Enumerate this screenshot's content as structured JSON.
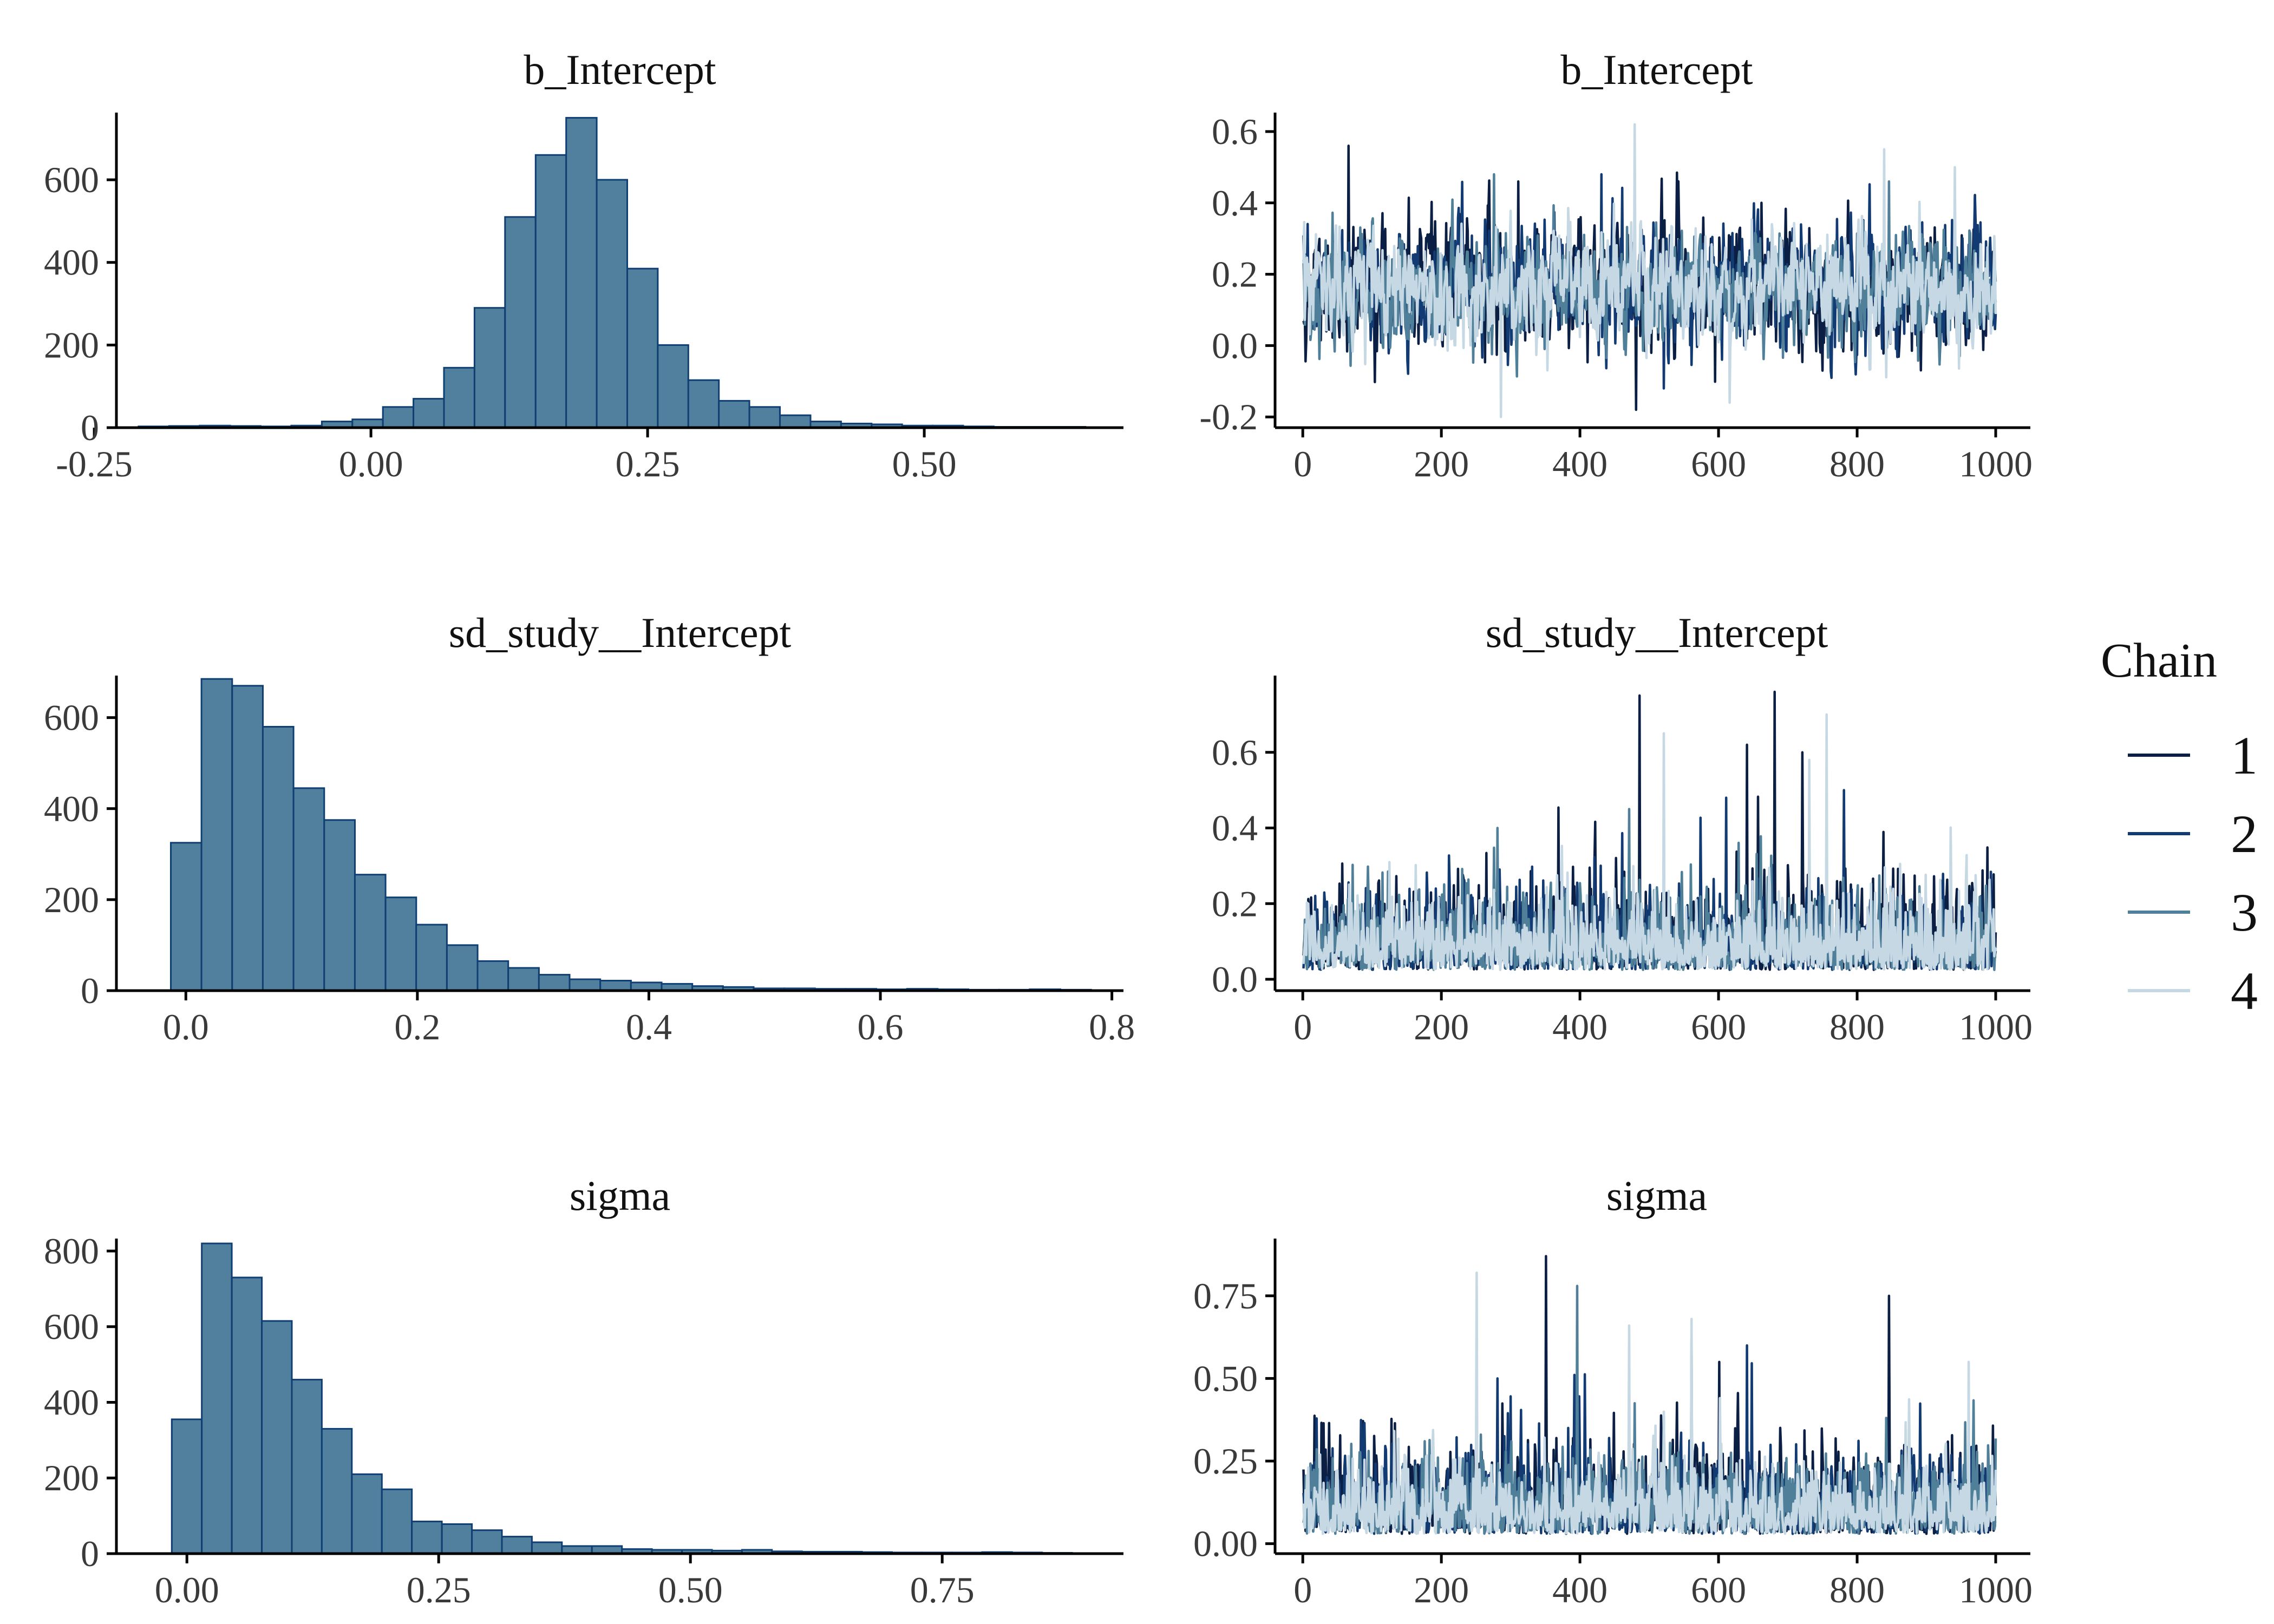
{
  "figure": {
    "legend_title": "Chain"
  },
  "legend": {
    "items": [
      {
        "label": "1",
        "color": "#0b1f45"
      },
      {
        "label": "2",
        "color": "#123a73"
      },
      {
        "label": "3",
        "color": "#4f7f99"
      },
      {
        "label": "4",
        "color": "#c5d8e4"
      }
    ]
  },
  "colors": {
    "hist_fill": "#51809f",
    "hist_edge": "#0f3f72",
    "axis": "#000000"
  },
  "chart_data": [
    {
      "type": "bar",
      "subtype": "histogram",
      "title": "b_Intercept",
      "xlabel": "",
      "ylabel": "",
      "xlim": [
        -0.23,
        0.68
      ],
      "ylim": [
        0,
        760
      ],
      "xticks": [
        -0.25,
        0.0,
        0.25,
        0.5
      ],
      "xtick_labels": [
        "-0.25",
        "0.00",
        "0.25",
        "0.50"
      ],
      "yticks": [
        0,
        200,
        400,
        600
      ],
      "ytick_labels": [
        "0",
        "200",
        "400",
        "600"
      ],
      "bin_start": -0.21,
      "bin_width": 0.0276,
      "counts": [
        3,
        4,
        5,
        4,
        3,
        5,
        15,
        20,
        50,
        70,
        145,
        290,
        510,
        660,
        750,
        600,
        385,
        200,
        115,
        65,
        50,
        30,
        15,
        10,
        8,
        5,
        5,
        3,
        2,
        2,
        2
      ]
    },
    {
      "type": "line",
      "subtype": "trace",
      "title": "b_Intercept",
      "xlabel": "",
      "ylabel": "",
      "xlim": [
        -40,
        1050
      ],
      "ylim": [
        -0.23,
        0.65
      ],
      "xticks": [
        0,
        200,
        400,
        600,
        800,
        1000
      ],
      "xtick_labels": [
        "0",
        "200",
        "400",
        "600",
        "800",
        "1000"
      ],
      "yticks": [
        -0.2,
        0.0,
        0.2,
        0.4,
        0.6
      ],
      "ytick_labels": [
        "-0.2",
        "0.0",
        "0.2",
        "0.4",
        "0.6"
      ],
      "iterations": 1000,
      "series": [
        {
          "name": "Chain 1",
          "color": "#0b1f45",
          "center": 0.16,
          "scale": 0.08,
          "seed": 11,
          "min": -0.18,
          "max": 0.56,
          "peaks": [
            [
              65,
              0.56
            ],
            [
              480,
              -0.18
            ],
            [
              310,
              0.46
            ]
          ]
        },
        {
          "name": "Chain 2",
          "color": "#123a73",
          "center": 0.16,
          "scale": 0.075,
          "seed": 23,
          "min": -0.15,
          "max": 0.5,
          "peaks": [
            [
              430,
              0.48
            ],
            [
              520,
              -0.12
            ]
          ]
        },
        {
          "name": "Chain 3",
          "color": "#4f7f99",
          "center": 0.16,
          "scale": 0.07,
          "seed": 37,
          "min": -0.12,
          "max": 0.48,
          "peaks": [
            [
              275,
              0.48
            ],
            [
              845,
              0.46
            ]
          ]
        },
        {
          "name": "Chain 4",
          "color": "#c5d8e4",
          "center": 0.16,
          "scale": 0.07,
          "seed": 53,
          "min": -0.2,
          "max": 0.62,
          "peaks": [
            [
              478,
              0.62
            ],
            [
              285,
              -0.2
            ],
            [
              838,
              0.55
            ],
            [
              940,
              0.5
            ],
            [
              615,
              -0.16
            ]
          ]
        }
      ]
    },
    {
      "type": "bar",
      "subtype": "histogram",
      "title": "sd_study__Intercept",
      "xlabel": "",
      "ylabel": "",
      "xlim": [
        -0.06,
        0.81
      ],
      "ylim": [
        0,
        690
      ],
      "xticks": [
        0.0,
        0.2,
        0.4,
        0.6,
        0.8
      ],
      "xtick_labels": [
        "0.0",
        "0.2",
        "0.4",
        "0.6",
        "0.8"
      ],
      "yticks": [
        0,
        200,
        400,
        600
      ],
      "ytick_labels": [
        "0",
        "200",
        "400",
        "600"
      ],
      "bin_start": -0.013,
      "bin_width": 0.0265,
      "counts": [
        325,
        685,
        670,
        580,
        445,
        375,
        255,
        205,
        145,
        100,
        65,
        50,
        35,
        25,
        22,
        18,
        15,
        10,
        8,
        5,
        5,
        4,
        4,
        3,
        4,
        3,
        2,
        2,
        3,
        2
      ]
    },
    {
      "type": "line",
      "subtype": "trace",
      "title": "sd_study__Intercept",
      "xlabel": "",
      "ylabel": "",
      "xlim": [
        -40,
        1050
      ],
      "ylim": [
        -0.03,
        0.8
      ],
      "xticks": [
        0,
        200,
        400,
        600,
        800,
        1000
      ],
      "xtick_labels": [
        "0",
        "200",
        "400",
        "600",
        "800",
        "1000"
      ],
      "yticks": [
        0.0,
        0.2,
        0.4,
        0.6
      ],
      "ytick_labels": [
        "0.0",
        "0.2",
        "0.4",
        "0.6"
      ],
      "iterations": 1000,
      "series": [
        {
          "name": "Chain 1",
          "color": "#0b1f45",
          "center": 0.1,
          "scale": 0.08,
          "seed": 71,
          "min": 0.0,
          "max": 0.76,
          "peaks": [
            [
              485,
              0.75
            ],
            [
              680,
              0.76
            ],
            [
              640,
              0.62
            ],
            [
              720,
              0.6
            ]
          ]
        },
        {
          "name": "Chain 2",
          "color": "#123a73",
          "center": 0.1,
          "scale": 0.075,
          "seed": 83,
          "min": 0.0,
          "max": 0.55,
          "peaks": [
            [
              780,
              0.5
            ],
            [
              610,
              0.48
            ]
          ]
        },
        {
          "name": "Chain 3",
          "color": "#4f7f99",
          "center": 0.1,
          "scale": 0.07,
          "seed": 97,
          "min": 0.0,
          "max": 0.5,
          "peaks": [
            [
              470,
              0.45
            ],
            [
              280,
              0.4
            ]
          ]
        },
        {
          "name": "Chain 4",
          "color": "#c5d8e4",
          "center": 0.1,
          "scale": 0.07,
          "seed": 101,
          "min": 0.0,
          "max": 0.72,
          "peaks": [
            [
              520,
              0.65
            ],
            [
              755,
              0.7
            ],
            [
              730,
              0.58
            ]
          ]
        }
      ]
    },
    {
      "type": "bar",
      "subtype": "histogram",
      "title": "sigma",
      "xlabel": "",
      "ylabel": "",
      "xlim": [
        -0.07,
        0.93
      ],
      "ylim": [
        0,
        830
      ],
      "xticks": [
        0.0,
        0.25,
        0.5,
        0.75
      ],
      "xtick_labels": [
        "0.00",
        "0.25",
        "0.50",
        "0.75"
      ],
      "yticks": [
        0,
        200,
        400,
        600,
        800
      ],
      "ytick_labels": [
        "0",
        "200",
        "400",
        "600",
        "800"
      ],
      "bin_start": -0.015,
      "bin_width": 0.0298,
      "counts": [
        355,
        820,
        730,
        615,
        460,
        330,
        210,
        170,
        85,
        78,
        62,
        45,
        30,
        20,
        20,
        12,
        10,
        10,
        8,
        10,
        6,
        5,
        5,
        4,
        3,
        3,
        3,
        4,
        3,
        2
      ]
    },
    {
      "type": "line",
      "subtype": "trace",
      "title": "sigma",
      "xlabel": "",
      "ylabel": "",
      "xlim": [
        -40,
        1050
      ],
      "ylim": [
        -0.03,
        0.92
      ],
      "xticks": [
        0,
        200,
        400,
        600,
        800,
        1000
      ],
      "xtick_labels": [
        "0",
        "200",
        "400",
        "600",
        "800",
        "1000"
      ],
      "yticks": [
        0.0,
        0.25,
        0.5,
        0.75
      ],
      "ytick_labels": [
        "0.00",
        "0.25",
        "0.50",
        "0.75"
      ],
      "iterations": 1000,
      "series": [
        {
          "name": "Chain 1",
          "color": "#0b1f45",
          "center": 0.12,
          "scale": 0.09,
          "seed": 131,
          "min": 0.0,
          "max": 0.87,
          "peaks": [
            [
              350,
              0.87
            ],
            [
              845,
              0.75
            ],
            [
              600,
              0.55
            ]
          ]
        },
        {
          "name": "Chain 2",
          "color": "#123a73",
          "center": 0.12,
          "scale": 0.085,
          "seed": 149,
          "min": 0.0,
          "max": 0.65,
          "peaks": [
            [
              640,
              0.6
            ],
            [
              280,
              0.5
            ]
          ]
        },
        {
          "name": "Chain 3",
          "color": "#4f7f99",
          "center": 0.12,
          "scale": 0.08,
          "seed": 163,
          "min": 0.0,
          "max": 0.78,
          "peaks": [
            [
              395,
              0.78
            ],
            [
              560,
              0.62
            ]
          ]
        },
        {
          "name": "Chain 4",
          "color": "#c5d8e4",
          "center": 0.12,
          "scale": 0.08,
          "seed": 179,
          "min": 0.0,
          "max": 0.82,
          "peaks": [
            [
              250,
              0.82
            ],
            [
              470,
              0.66
            ],
            [
              560,
              0.68
            ],
            [
              960,
              0.55
            ]
          ]
        }
      ]
    }
  ]
}
